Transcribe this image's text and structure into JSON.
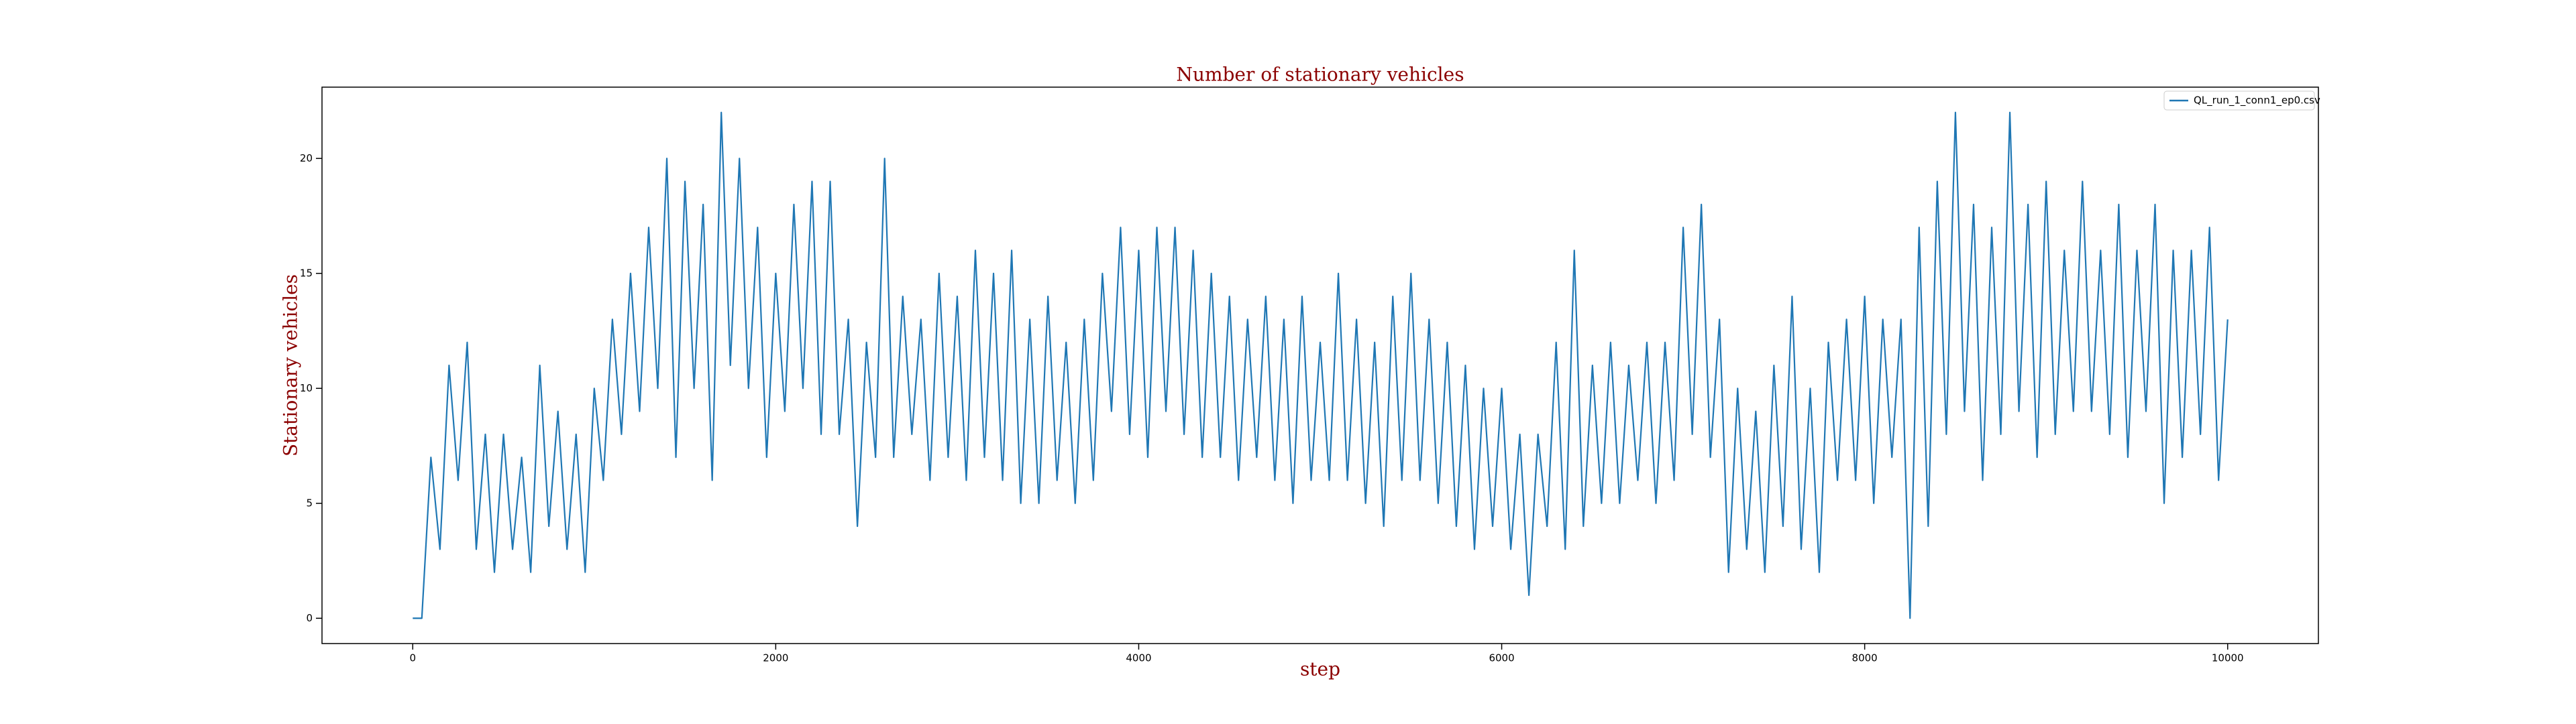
{
  "chart_data": {
    "type": "line",
    "title": "Number of stationary vehicles",
    "x_label": "step",
    "y_label": "Stationary vehicles",
    "x": [
      0,
      50,
      100,
      150,
      200,
      250,
      300,
      350,
      400,
      450,
      500,
      550,
      600,
      650,
      700,
      750,
      800,
      850,
      900,
      950,
      1000,
      1050,
      1100,
      1150,
      1200,
      1250,
      1300,
      1350,
      1400,
      1450,
      1500,
      1550,
      1600,
      1650,
      1700,
      1750,
      1800,
      1850,
      1900,
      1950,
      2000,
      2050,
      2100,
      2150,
      2200,
      2250,
      2300,
      2350,
      2400,
      2450,
      2500,
      2550,
      2600,
      2650,
      2700,
      2750,
      2800,
      2850,
      2900,
      2950,
      3000,
      3050,
      3100,
      3150,
      3200,
      3250,
      3300,
      3350,
      3400,
      3450,
      3500,
      3550,
      3600,
      3650,
      3700,
      3750,
      3800,
      3850,
      3900,
      3950,
      4000,
      4050,
      4100,
      4150,
      4200,
      4250,
      4300,
      4350,
      4400,
      4450,
      4500,
      4550,
      4600,
      4650,
      4700,
      4750,
      4800,
      4850,
      4900,
      4950,
      5000,
      5050,
      5100,
      5150,
      5200,
      5250,
      5300,
      5350,
      5400,
      5450,
      5500,
      5550,
      5600,
      5650,
      5700,
      5750,
      5800,
      5850,
      5900,
      5950,
      6000,
      6050,
      6100,
      6150,
      6200,
      6250,
      6300,
      6350,
      6400,
      6450,
      6500,
      6550,
      6600,
      6650,
      6700,
      6750,
      6800,
      6850,
      6900,
      6950,
      7000,
      7050,
      7100,
      7150,
      7200,
      7250,
      7300,
      7350,
      7400,
      7450,
      7500,
      7550,
      7600,
      7650,
      7700,
      7750,
      7800,
      7850,
      7900,
      7950,
      8000,
      8050,
      8100,
      8150,
      8200,
      8250,
      8300,
      8350,
      8400,
      8450,
      8500,
      8550,
      8600,
      8650,
      8700,
      8750,
      8800,
      8850,
      8900,
      8950,
      9000,
      9050,
      9100,
      9150,
      9200,
      9250,
      9300,
      9350,
      9400,
      9450,
      9500,
      9550,
      9600,
      9650,
      9700,
      9750,
      9800,
      9850,
      9900,
      9950,
      10000
    ],
    "series": [
      {
        "name": "QL_run_1_conn1_ep0.csv",
        "color": "#1f77b4",
        "values": [
          0,
          0,
          7,
          3,
          11,
          6,
          12,
          3,
          8,
          2,
          8,
          3,
          7,
          2,
          11,
          4,
          9,
          3,
          8,
          2,
          10,
          6,
          13,
          8,
          15,
          9,
          17,
          10,
          20,
          7,
          19,
          10,
          18,
          6,
          22,
          11,
          20,
          10,
          17,
          7,
          15,
          9,
          18,
          10,
          19,
          8,
          19,
          8,
          13,
          4,
          12,
          7,
          20,
          7,
          14,
          8,
          13,
          6,
          15,
          7,
          14,
          6,
          16,
          7,
          15,
          6,
          16,
          5,
          13,
          5,
          14,
          6,
          12,
          5,
          13,
          6,
          15,
          9,
          17,
          8,
          16,
          7,
          17,
          9,
          17,
          8,
          16,
          7,
          15,
          7,
          14,
          6,
          13,
          7,
          14,
          6,
          13,
          5,
          14,
          6,
          12,
          6,
          15,
          6,
          13,
          5,
          12,
          4,
          14,
          6,
          15,
          6,
          13,
          5,
          12,
          4,
          11,
          3,
          10,
          4,
          10,
          3,
          8,
          1,
          8,
          4,
          12,
          3,
          16,
          4,
          11,
          5,
          12,
          5,
          11,
          6,
          12,
          5,
          12,
          6,
          17,
          8,
          18,
          7,
          13,
          2,
          10,
          3,
          9,
          2,
          11,
          4,
          14,
          3,
          10,
          2,
          12,
          6,
          13,
          6,
          14,
          5,
          13,
          7,
          13,
          0,
          17,
          4,
          19,
          8,
          22,
          9,
          18,
          6,
          17,
          8,
          22,
          9,
          18,
          7,
          19,
          8,
          16,
          9,
          19,
          9,
          16,
          8,
          18,
          7,
          16,
          9,
          18,
          5,
          16,
          7,
          16,
          8,
          17,
          6,
          13
        ]
      }
    ],
    "xlim": [
      -500,
      10500
    ],
    "ylim": [
      -1.1,
      23.1
    ],
    "xticks": [
      0,
      2000,
      4000,
      6000,
      8000,
      10000
    ],
    "yticks": [
      0,
      5,
      10,
      15,
      20
    ],
    "legend": "upper right"
  }
}
